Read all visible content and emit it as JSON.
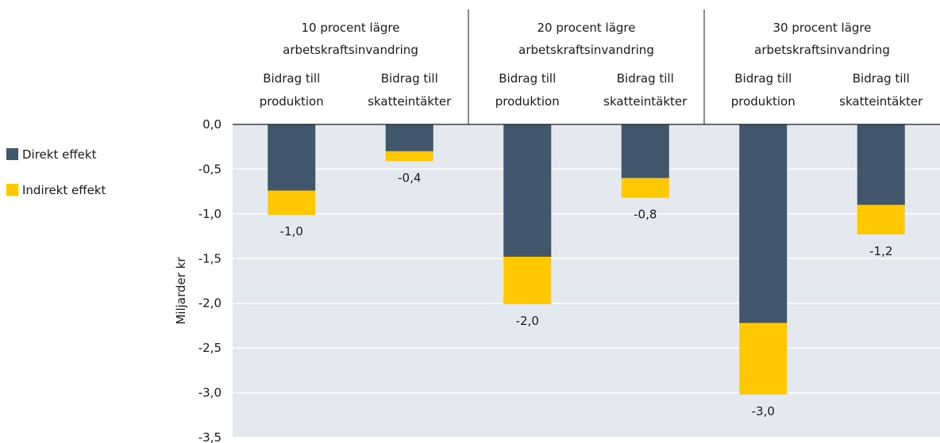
{
  "chart_data": {
    "type": "bar",
    "stacked": true,
    "ylabel": "Miljarder kr",
    "ylim": [
      -3.5,
      0.0
    ],
    "y_ticks": [
      "0,0",
      "-0,5",
      "-1,0",
      "-1,5",
      "-2,0",
      "-2,5",
      "-3,0",
      "-3,5"
    ],
    "grid": true,
    "legend_position": "left",
    "groups": [
      {
        "label_lines": [
          "10 procent lägre",
          "arbetskraftsinvandring"
        ]
      },
      {
        "label_lines": [
          "20 procent lägre",
          "arbetskraftsinvandring"
        ]
      },
      {
        "label_lines": [
          "30 procent lägre",
          "arbetskraftsinvandring"
        ]
      }
    ],
    "categories": [
      {
        "lines": [
          "Bidrag till",
          "produktion"
        ]
      },
      {
        "lines": [
          "Bidrag till",
          "skatteintäkter"
        ]
      },
      {
        "lines": [
          "Bidrag till",
          "produktion"
        ]
      },
      {
        "lines": [
          "Bidrag till",
          "skatteintäkter"
        ]
      },
      {
        "lines": [
          "Bidrag till",
          "produktion"
        ]
      },
      {
        "lines": [
          "Bidrag till",
          "skatteintäkter"
        ]
      }
    ],
    "series": [
      {
        "name": "Direkt effekt",
        "color": "#41566a",
        "values": [
          -0.74,
          -0.3,
          -1.48,
          -0.6,
          -2.22,
          -0.9
        ]
      },
      {
        "name": "Indirekt effekt",
        "color": "#ffc800",
        "values": [
          -0.27,
          -0.11,
          -0.53,
          -0.22,
          -0.8,
          -0.33
        ]
      }
    ],
    "total_labels": [
      "-1,0",
      "-0,4",
      "-2,0",
      "-0,8",
      "-3,0",
      "-1,2"
    ]
  },
  "style": {
    "plot_background": "#e4e8ef",
    "gridline_color": "#ffffff",
    "axis_color": "#1a1a1a",
    "separator_color": "#1a1a1a"
  }
}
